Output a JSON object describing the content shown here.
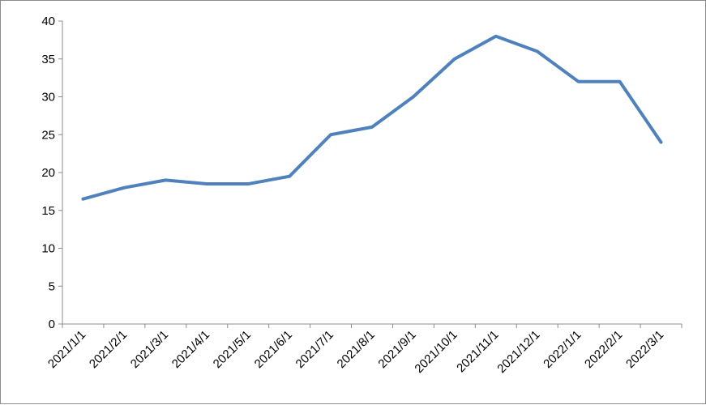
{
  "chart_data": {
    "type": "line",
    "title": "",
    "xlabel": "",
    "ylabel": "",
    "categories": [
      "2021/1/1",
      "2021/2/1",
      "2021/3/1",
      "2021/4/1",
      "2021/5/1",
      "2021/6/1",
      "2021/7/1",
      "2021/8/1",
      "2021/9/1",
      "2021/10/1",
      "2021/11/1",
      "2021/12/1",
      "2022/1/1",
      "2022/2/1",
      "2022/3/1"
    ],
    "series": [
      {
        "values": [
          16.5,
          18,
          19,
          18.5,
          18.5,
          19.5,
          25,
          26,
          30,
          35,
          38,
          36,
          32,
          32,
          24
        ],
        "color": "#4f81bd"
      }
    ],
    "ylim": [
      0,
      40
    ],
    "yticks": [
      0,
      5,
      10,
      15,
      20,
      25,
      30,
      35,
      40
    ],
    "grid": false,
    "legend": "none",
    "axis_color": "#8c8c8c"
  }
}
